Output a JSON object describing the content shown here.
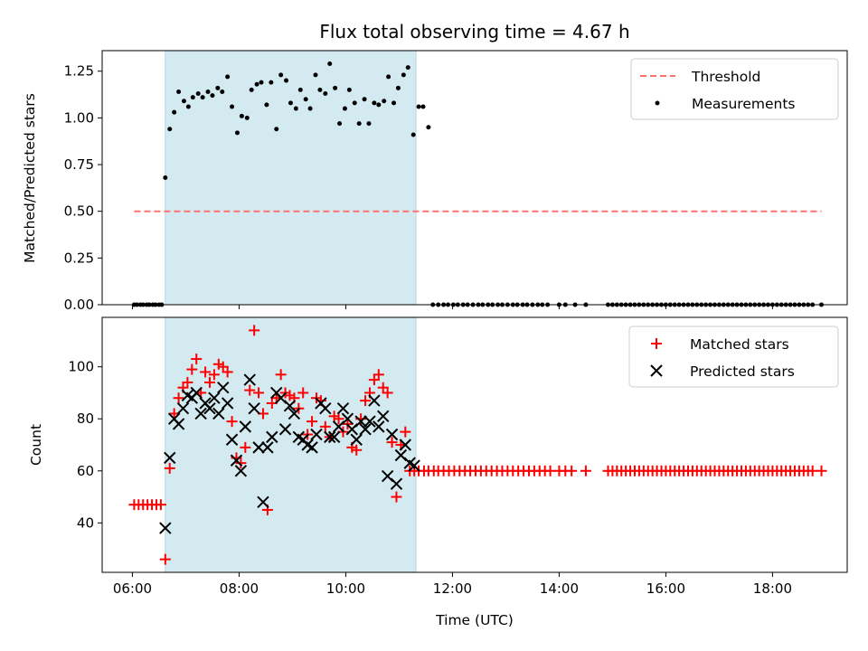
{
  "chart_data": [
    {
      "type": "scatter",
      "title": "Flux total observing time = 4.67 h",
      "xlabel": "",
      "ylabel": "Matched/Predicted stars",
      "xlim": [
        "05:26",
        "19:24"
      ],
      "ylim": [
        0,
        1.36
      ],
      "x_ticks": [],
      "y_ticks": [
        0.0,
        0.25,
        0.5,
        0.75,
        1.0,
        1.25
      ],
      "y_tick_labels": [
        "0.00",
        "0.25",
        "0.50",
        "0.75",
        "1.00",
        "1.25"
      ],
      "grid": false,
      "legend_position": "top-right",
      "observing_window": [
        "06:37",
        "11:19"
      ],
      "observing_window_color": "#d3eaf1",
      "series": [
        {
          "name": "Threshold",
          "kind": "dashed-line",
          "color": "#ff7070",
          "x": [
            "06:02",
            "18:55"
          ],
          "y": [
            0.5,
            0.5
          ]
        },
        {
          "name": "Measurements",
          "kind": "scatter",
          "marker": "dot",
          "color": "#000000",
          "x": [
            "06:02",
            "06:05",
            "06:09",
            "06:12",
            "06:16",
            "06:19",
            "06:23",
            "06:26",
            "06:30",
            "06:33",
            "06:37",
            "06:42",
            "06:47",
            "06:52",
            "06:58",
            "07:03",
            "07:08",
            "07:14",
            "07:19",
            "07:25",
            "07:30",
            "07:36",
            "07:41",
            "07:47",
            "07:52",
            "07:58",
            "08:03",
            "08:09",
            "08:14",
            "08:20",
            "08:25",
            "08:31",
            "08:36",
            "08:42",
            "08:47",
            "08:53",
            "08:58",
            "09:04",
            "09:09",
            "09:15",
            "09:20",
            "09:26",
            "09:31",
            "09:37",
            "09:42",
            "09:48",
            "09:53",
            "09:59",
            "10:04",
            "10:10",
            "10:15",
            "10:21",
            "10:26",
            "10:32",
            "10:37",
            "10:43",
            "10:48",
            "10:54",
            "10:59",
            "11:05",
            "11:10",
            "11:16",
            "11:22",
            "11:27",
            "11:33",
            "11:38",
            "11:44",
            "11:50",
            "11:55",
            "12:01",
            "12:06",
            "12:12",
            "12:17",
            "12:23",
            "12:29",
            "12:34",
            "12:40",
            "12:45",
            "12:51",
            "12:56",
            "13:02",
            "13:08",
            "13:13",
            "13:19",
            "13:24",
            "13:30",
            "13:36",
            "13:41",
            "13:47",
            "14:00",
            "14:07",
            "14:18",
            "14:30",
            "14:55",
            "15:00",
            "15:05",
            "15:10",
            "15:15",
            "15:20",
            "15:25",
            "15:30",
            "15:35",
            "15:40",
            "15:45",
            "15:50",
            "15:55",
            "16:00",
            "16:05",
            "16:10",
            "16:15",
            "16:20",
            "16:25",
            "16:30",
            "16:35",
            "16:40",
            "16:45",
            "16:50",
            "16:55",
            "17:00",
            "17:05",
            "17:10",
            "17:15",
            "17:20",
            "17:25",
            "17:30",
            "17:35",
            "17:40",
            "17:45",
            "17:50",
            "17:55",
            "18:00",
            "18:05",
            "18:10",
            "18:15",
            "18:20",
            "18:25",
            "18:30",
            "18:35",
            "18:40",
            "18:45",
            "18:55"
          ],
          "y": [
            0,
            0,
            0,
            0,
            0,
            0,
            0,
            0,
            0,
            0,
            0.68,
            0.94,
            1.03,
            1.14,
            1.09,
            1.06,
            1.11,
            1.13,
            1.11,
            1.14,
            1.12,
            1.16,
            1.14,
            1.22,
            1.06,
            0.92,
            1.01,
            1.0,
            1.15,
            1.18,
            1.19,
            1.07,
            1.19,
            0.94,
            1.23,
            1.2,
            1.08,
            1.05,
            1.15,
            1.1,
            1.05,
            1.23,
            1.15,
            1.13,
            1.29,
            1.16,
            0.97,
            1.05,
            1.15,
            1.08,
            0.97,
            1.1,
            0.97,
            1.08,
            1.07,
            1.09,
            1.22,
            1.08,
            1.16,
            1.23,
            1.27,
            0.91,
            1.06,
            1.06,
            0.95,
            0,
            0,
            0,
            0,
            0,
            0,
            0,
            0,
            0,
            0,
            0,
            0,
            0,
            0,
            0,
            0,
            0,
            0,
            0,
            0,
            0,
            0,
            0,
            0,
            0,
            0,
            0,
            0,
            0,
            0,
            0,
            0,
            0,
            0,
            0,
            0,
            0,
            0,
            0,
            0,
            0,
            0,
            0,
            0,
            0,
            0,
            0,
            0,
            0,
            0,
            0,
            0,
            0,
            0,
            0,
            0,
            0,
            0,
            0,
            0,
            0,
            0,
            0,
            0,
            0,
            0,
            0,
            0,
            0,
            0,
            0,
            0,
            0,
            0,
            0,
            0
          ]
        }
      ]
    },
    {
      "type": "scatter",
      "title": "",
      "xlabel": "Time (UTC)",
      "ylabel": "Count",
      "xlim": [
        "05:26",
        "19:24"
      ],
      "ylim": [
        21,
        119
      ],
      "x_ticks": [
        "06:00",
        "08:00",
        "10:00",
        "12:00",
        "14:00",
        "16:00",
        "18:00"
      ],
      "y_ticks": [
        40,
        60,
        80,
        100
      ],
      "grid": false,
      "legend_position": "top-right",
      "observing_window": [
        "06:37",
        "11:19"
      ],
      "observing_window_color": "#d3eaf1",
      "series": [
        {
          "name": "Matched stars",
          "marker": "plus",
          "color": "#ff0000",
          "x": [
            "06:02",
            "06:07",
            "06:12",
            "06:17",
            "06:22",
            "06:27",
            "06:32",
            "06:37",
            "06:42",
            "06:47",
            "06:52",
            "06:57",
            "07:02",
            "07:07",
            "07:12",
            "07:17",
            "07:22",
            "07:27",
            "07:32",
            "07:37",
            "07:42",
            "07:47",
            "07:52",
            "07:57",
            "08:02",
            "08:07",
            "08:12",
            "08:17",
            "08:22",
            "08:27",
            "08:32",
            "08:37",
            "08:42",
            "08:47",
            "08:52",
            "08:57",
            "09:02",
            "09:07",
            "09:12",
            "09:17",
            "09:22",
            "09:27",
            "09:32",
            "09:37",
            "09:42",
            "09:47",
            "09:52",
            "09:57",
            "10:02",
            "10:07",
            "10:12",
            "10:17",
            "10:22",
            "10:27",
            "10:32",
            "10:37",
            "10:42",
            "10:47",
            "10:52",
            "10:57",
            "11:02",
            "11:07",
            "11:12",
            "11:17",
            "11:22",
            "11:28",
            "11:33",
            "11:39",
            "11:44",
            "11:50",
            "11:56",
            "12:02",
            "12:08",
            "12:14",
            "12:20",
            "12:26",
            "12:32",
            "12:38",
            "12:44",
            "12:50",
            "12:56",
            "13:02",
            "13:08",
            "13:14",
            "13:20",
            "13:26",
            "13:32",
            "13:38",
            "13:44",
            "13:50",
            "14:00",
            "14:07",
            "14:14",
            "14:30",
            "14:55",
            "15:00",
            "15:05",
            "15:10",
            "15:15",
            "15:20",
            "15:25",
            "15:30",
            "15:35",
            "15:40",
            "15:45",
            "15:50",
            "15:55",
            "16:00",
            "16:05",
            "16:10",
            "16:15",
            "16:20",
            "16:25",
            "16:30",
            "16:35",
            "16:40",
            "16:45",
            "16:50",
            "16:55",
            "17:00",
            "17:05",
            "17:10",
            "17:15",
            "17:20",
            "17:25",
            "17:30",
            "17:35",
            "17:40",
            "17:45",
            "17:50",
            "17:55",
            "18:00",
            "18:05",
            "18:10",
            "18:15",
            "18:20",
            "18:25",
            "18:30",
            "18:35",
            "18:40",
            "18:45",
            "18:55"
          ],
          "y": [
            47,
            47,
            47,
            47,
            47,
            47,
            47,
            26,
            61,
            82,
            88,
            92,
            94,
            99,
            103,
            90,
            98,
            94,
            97,
            101,
            100,
            98,
            79,
            65,
            63,
            69,
            91,
            114,
            90,
            82,
            45,
            86,
            88,
            97,
            90,
            89,
            88,
            84,
            90,
            74,
            79,
            88,
            87,
            77,
            73,
            81,
            80,
            75,
            78,
            69,
            68,
            80,
            87,
            90,
            95,
            97,
            92,
            90,
            71,
            50,
            70,
            75,
            60,
            60,
            60,
            60,
            60,
            60,
            60,
            60,
            60,
            60,
            60,
            60,
            60,
            60,
            60,
            60,
            60,
            60,
            60,
            60,
            60,
            60,
            60,
            60,
            60,
            60,
            60,
            60,
            60,
            60,
            60,
            60,
            60,
            60,
            60,
            60,
            60,
            60,
            60,
            60,
            60,
            60,
            60,
            60,
            60,
            60,
            60,
            60,
            60,
            60,
            60,
            60,
            60,
            60,
            60,
            60,
            60,
            60,
            60,
            60,
            60,
            60,
            60,
            60,
            60,
            60,
            60,
            60,
            60,
            60,
            60,
            60,
            60,
            60,
            60,
            60,
            60,
            60,
            60,
            60
          ]
        },
        {
          "name": "Predicted stars",
          "marker": "x",
          "color": "#000000",
          "x": [
            "06:37",
            "06:42",
            "06:47",
            "06:52",
            "06:57",
            "07:02",
            "07:07",
            "07:12",
            "07:17",
            "07:22",
            "07:27",
            "07:32",
            "07:37",
            "07:42",
            "07:47",
            "07:52",
            "07:57",
            "08:02",
            "08:07",
            "08:12",
            "08:17",
            "08:22",
            "08:27",
            "08:32",
            "08:37",
            "08:42",
            "08:47",
            "08:52",
            "08:57",
            "09:02",
            "09:07",
            "09:12",
            "09:17",
            "09:22",
            "09:27",
            "09:32",
            "09:37",
            "09:42",
            "09:47",
            "09:52",
            "09:57",
            "10:02",
            "10:07",
            "10:12",
            "10:17",
            "10:22",
            "10:27",
            "10:32",
            "10:37",
            "10:42",
            "10:47",
            "10:52",
            "10:57",
            "11:02",
            "11:07",
            "11:12",
            "11:17"
          ],
          "y": [
            38,
            65,
            80,
            78,
            84,
            89,
            88,
            90,
            82,
            86,
            84,
            88,
            82,
            92,
            86,
            72,
            64,
            60,
            77,
            95,
            84,
            69,
            48,
            69,
            73,
            90,
            88,
            76,
            85,
            82,
            73,
            72,
            70,
            69,
            74,
            86,
            84,
            73,
            73,
            77,
            84,
            80,
            76,
            72,
            79,
            76,
            79,
            87,
            77,
            81,
            58,
            74,
            55,
            66,
            70,
            63,
            62
          ]
        }
      ]
    }
  ]
}
